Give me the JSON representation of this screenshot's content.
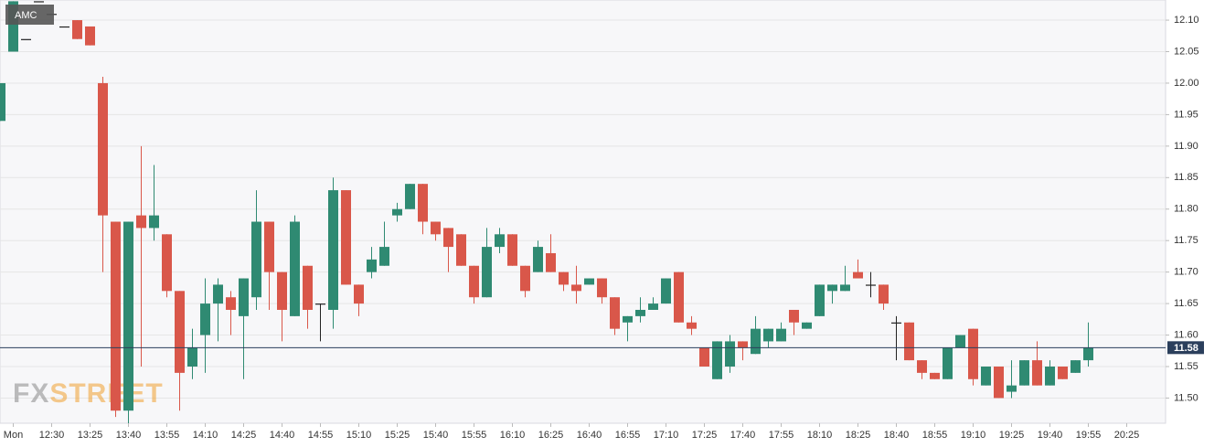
{
  "chart_data": {
    "type": "candlestick",
    "title": "AMC",
    "watermark": {
      "prefix": "FX",
      "suffix": "STREET"
    },
    "categories": [
      null,
      "Mon",
      null,
      null,
      "12:30",
      null,
      null,
      "13:25",
      null,
      null,
      "13:40",
      null,
      null,
      "13:55",
      null,
      null,
      "14:10",
      null,
      null,
      "14:25",
      null,
      null,
      "14:40",
      null,
      null,
      "14:55",
      null,
      null,
      "15:10",
      null,
      null,
      "15:25",
      null,
      null,
      "15:40",
      null,
      null,
      "15:55",
      null,
      null,
      "16:10",
      null,
      null,
      "16:25",
      null,
      null,
      "16:40",
      null,
      null,
      "16:55",
      null,
      null,
      "17:10",
      null,
      null,
      "17:25",
      null,
      null,
      "17:40",
      null,
      null,
      "17:55",
      null,
      null,
      "18:10",
      null,
      null,
      "18:25",
      null,
      null,
      "18:40",
      null,
      null,
      "18:55",
      null,
      null,
      "19:10",
      null,
      null,
      "19:25",
      null,
      null,
      "19:40",
      null,
      null,
      "19:55",
      null,
      null,
      "20:25"
    ],
    "open": [
      11.94,
      12.05,
      12.07,
      12.13,
      12.11,
      12.09,
      12.1,
      12.09,
      12.0,
      11.78,
      11.48,
      11.79,
      11.77,
      11.76,
      11.67,
      11.55,
      11.6,
      11.65,
      11.66,
      11.63,
      11.66,
      11.78,
      11.7,
      11.63,
      11.71,
      11.65,
      11.64,
      11.83,
      11.68,
      11.7,
      11.71,
      11.79,
      11.8,
      11.84,
      11.78,
      11.77,
      11.76,
      11.71,
      11.66,
      11.74,
      11.76,
      11.71,
      11.7,
      11.73,
      11.7,
      11.68,
      11.68,
      11.69,
      11.66,
      11.62,
      11.63,
      11.64,
      11.65,
      11.7,
      11.62,
      11.58,
      11.53,
      11.55,
      11.59,
      11.57,
      11.59,
      11.59,
      11.64,
      11.61,
      11.63,
      11.67,
      11.67,
      11.7,
      11.68,
      11.68,
      11.62,
      11.62,
      11.56,
      11.54,
      11.53,
      11.58,
      11.61,
      11.52,
      11.55,
      11.51,
      11.52,
      11.56,
      11.52,
      11.55,
      11.54,
      11.56,
      null,
      null,
      null
    ],
    "high": [
      12.0,
      12.13,
      12.07,
      12.13,
      12.11,
      12.09,
      12.1,
      12.09,
      12.01,
      11.78,
      11.78,
      11.9,
      11.87,
      11.76,
      11.67,
      11.61,
      11.69,
      11.69,
      11.67,
      11.69,
      11.83,
      11.78,
      11.7,
      11.79,
      11.71,
      11.65,
      11.85,
      11.83,
      11.68,
      11.74,
      11.78,
      11.81,
      11.84,
      11.84,
      11.78,
      11.77,
      11.76,
      11.71,
      11.77,
      11.77,
      11.76,
      11.71,
      11.75,
      11.76,
      11.7,
      11.71,
      11.69,
      11.69,
      11.66,
      11.63,
      11.66,
      11.66,
      11.69,
      11.7,
      11.63,
      11.58,
      11.59,
      11.6,
      11.59,
      11.63,
      11.61,
      11.62,
      11.64,
      11.62,
      11.68,
      11.68,
      11.71,
      11.72,
      11.7,
      11.68,
      11.63,
      11.62,
      11.56,
      11.54,
      11.58,
      11.6,
      11.61,
      11.55,
      11.55,
      11.56,
      11.56,
      11.59,
      11.56,
      11.55,
      11.56,
      11.62,
      null,
      null,
      null
    ],
    "low": [
      11.94,
      12.05,
      12.07,
      12.13,
      12.11,
      12.09,
      12.07,
      12.06,
      11.7,
      11.47,
      11.46,
      11.55,
      11.75,
      11.66,
      11.48,
      11.53,
      11.54,
      11.59,
      11.6,
      11.53,
      11.64,
      11.64,
      11.59,
      11.63,
      11.61,
      11.59,
      11.61,
      11.68,
      11.63,
      11.69,
      11.71,
      11.78,
      11.8,
      11.76,
      11.75,
      11.7,
      11.71,
      11.65,
      11.66,
      11.73,
      11.71,
      11.66,
      11.7,
      11.7,
      11.67,
      11.65,
      11.68,
      11.65,
      11.6,
      11.59,
      11.62,
      11.64,
      11.65,
      11.62,
      11.6,
      11.55,
      11.53,
      11.54,
      11.56,
      11.57,
      11.58,
      11.59,
      11.6,
      11.61,
      11.63,
      11.65,
      11.67,
      11.69,
      11.66,
      11.64,
      11.56,
      11.56,
      11.53,
      11.53,
      11.53,
      11.58,
      11.52,
      11.52,
      11.5,
      11.5,
      11.52,
      11.52,
      11.52,
      11.53,
      11.54,
      11.55,
      null,
      null,
      null
    ],
    "close": [
      12.0,
      12.13,
      12.07,
      12.13,
      12.11,
      12.09,
      12.07,
      12.06,
      11.79,
      11.48,
      11.78,
      11.77,
      11.79,
      11.67,
      11.54,
      11.58,
      11.65,
      11.68,
      11.64,
      11.69,
      11.78,
      11.7,
      11.64,
      11.78,
      11.64,
      11.65,
      11.83,
      11.68,
      11.65,
      11.72,
      11.74,
      11.8,
      11.84,
      11.78,
      11.76,
      11.74,
      11.71,
      11.66,
      11.74,
      11.76,
      11.71,
      11.67,
      11.74,
      11.7,
      11.68,
      11.67,
      11.69,
      11.66,
      11.61,
      11.63,
      11.64,
      11.65,
      11.69,
      11.62,
      11.61,
      11.55,
      11.59,
      11.59,
      11.58,
      11.61,
      11.61,
      11.61,
      11.62,
      11.62,
      11.68,
      11.68,
      11.68,
      11.69,
      11.68,
      11.65,
      11.62,
      11.56,
      11.54,
      11.53,
      11.58,
      11.6,
      11.53,
      11.55,
      11.5,
      11.52,
      11.56,
      11.52,
      11.55,
      11.53,
      11.56,
      11.58,
      null,
      null,
      null
    ],
    "up_color": "#2f8a72",
    "down_color": "#d9574a",
    "last_price": 11.58,
    "ylim": [
      11.46,
      12.132
    ],
    "yticks": [
      {
        "value": 11.5,
        "label": "11.50"
      },
      11.55,
      {
        "value": 11.6,
        "label": "11.60"
      },
      11.65,
      {
        "value": 11.7,
        "label": "11.70"
      },
      11.75,
      {
        "value": 11.8,
        "label": "11.80"
      },
      11.85,
      {
        "value": 11.9,
        "label": "11.90"
      },
      11.95,
      {
        "value": 12.0,
        "label": "12.00"
      },
      12.05,
      {
        "value": 12.1,
        "label": "12.10"
      }
    ],
    "grid": true
  }
}
